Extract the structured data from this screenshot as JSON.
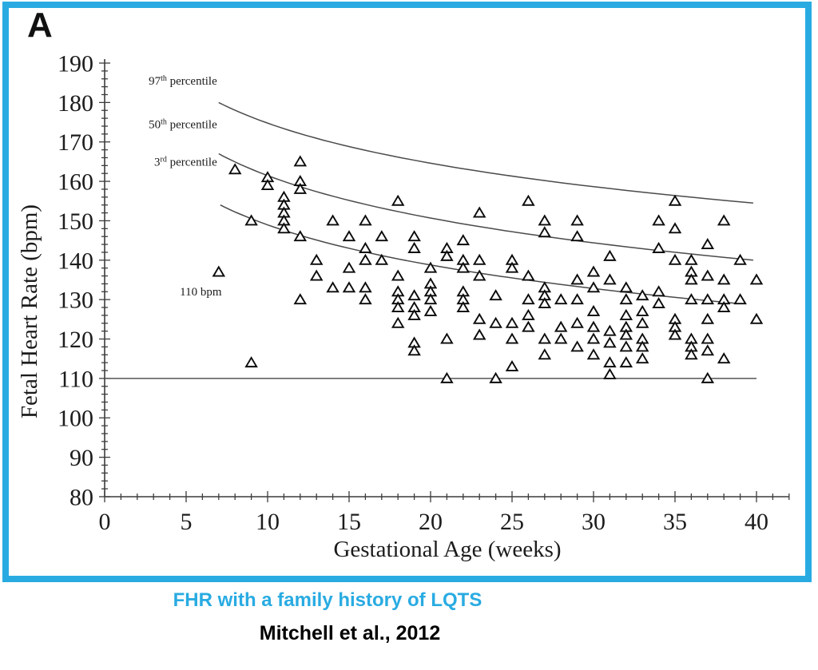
{
  "panel_label": "A",
  "frame": {
    "border_color": "#29abe2",
    "background": "#ffffff"
  },
  "captions": {
    "subtitle": {
      "text": "FHR with a family history of LQTS",
      "color": "#29abe2"
    },
    "citation": {
      "text": "Mitchell et al., 2012",
      "color": "#000000"
    }
  },
  "chart_data": {
    "type": "scatter",
    "title": "",
    "xlabel": "Gestational Age (weeks)",
    "ylabel": "Fetal Heart Rate (bpm)",
    "xlim": [
      0,
      42
    ],
    "ylim": [
      80,
      190
    ],
    "x_major_ticks": [
      0,
      5,
      10,
      15,
      20,
      25,
      30,
      35,
      40
    ],
    "x_minor_step": 1,
    "y_major_ticks": [
      80,
      90,
      100,
      110,
      120,
      130,
      140,
      150,
      160,
      170,
      180,
      190
    ],
    "y_minor_step": 2,
    "grid": false,
    "legend": "none",
    "marker": "open-triangle",
    "marker_color": "#0a0a0a",
    "axis_color": "#3c3c3c",
    "reference_line": {
      "y": 110,
      "x_start": 0,
      "x_end": 40,
      "label": "110 bpm",
      "label_week": 5.9,
      "label_bpm": 131
    },
    "percentile_curves": [
      {
        "label_base": "97",
        "label_sup": "th",
        "label_rest": " percentile",
        "start_week": 7,
        "start_bpm": 180,
        "end_week": 39.8,
        "end_bpm": 154.5,
        "label_week": 6.9,
        "label_bpm": 184.5
      },
      {
        "label_base": "50",
        "label_sup": "th",
        "label_rest": " percentile",
        "start_week": 7,
        "start_bpm": 167,
        "end_week": 39.8,
        "end_bpm": 140,
        "label_week": 6.9,
        "label_bpm": 173.5
      },
      {
        "label_base": "3",
        "label_sup": "rd",
        "label_rest": " percentile",
        "start_week": 7.1,
        "start_bpm": 154,
        "end_week": 38.9,
        "end_bpm": 129,
        "label_week": 6.9,
        "label_bpm": 164
      }
    ],
    "points": [
      [
        7,
        137
      ],
      [
        8,
        163
      ],
      [
        9,
        150
      ],
      [
        9,
        114
      ],
      [
        10,
        161
      ],
      [
        10,
        159
      ],
      [
        11,
        156
      ],
      [
        11,
        154
      ],
      [
        11,
        152
      ],
      [
        11,
        150
      ],
      [
        11,
        148
      ],
      [
        12,
        165
      ],
      [
        12,
        160
      ],
      [
        12,
        158
      ],
      [
        12,
        146
      ],
      [
        12,
        130
      ],
      [
        13,
        140
      ],
      [
        13,
        136
      ],
      [
        14,
        150
      ],
      [
        14,
        133
      ],
      [
        15,
        146
      ],
      [
        15,
        138
      ],
      [
        15,
        133
      ],
      [
        16,
        150
      ],
      [
        16,
        143
      ],
      [
        16,
        140
      ],
      [
        16,
        133
      ],
      [
        16,
        130
      ],
      [
        17,
        146
      ],
      [
        17,
        140
      ],
      [
        18,
        155
      ],
      [
        18,
        136
      ],
      [
        18,
        132
      ],
      [
        18,
        130
      ],
      [
        18,
        128
      ],
      [
        18,
        124
      ],
      [
        19,
        146
      ],
      [
        19,
        143
      ],
      [
        19,
        131
      ],
      [
        19,
        128
      ],
      [
        19,
        126
      ],
      [
        19,
        119
      ],
      [
        19,
        117
      ],
      [
        20,
        138
      ],
      [
        20,
        134
      ],
      [
        20,
        132
      ],
      [
        20,
        130
      ],
      [
        20,
        127
      ],
      [
        21,
        143
      ],
      [
        21,
        141
      ],
      [
        21,
        120
      ],
      [
        21,
        110
      ],
      [
        22,
        145
      ],
      [
        22,
        140
      ],
      [
        22,
        138
      ],
      [
        22,
        132
      ],
      [
        22,
        130
      ],
      [
        22,
        128
      ],
      [
        23,
        152
      ],
      [
        23,
        140
      ],
      [
        23,
        136
      ],
      [
        23,
        125
      ],
      [
        23,
        121
      ],
      [
        24,
        131
      ],
      [
        24,
        124
      ],
      [
        24,
        110
      ],
      [
        25,
        140
      ],
      [
        25,
        138
      ],
      [
        25,
        124
      ],
      [
        25,
        120
      ],
      [
        25,
        113
      ],
      [
        26,
        155
      ],
      [
        26,
        136
      ],
      [
        26,
        130
      ],
      [
        26,
        126
      ],
      [
        26,
        123
      ],
      [
        27,
        150
      ],
      [
        27,
        147
      ],
      [
        27,
        133
      ],
      [
        27,
        131
      ],
      [
        27,
        129
      ],
      [
        27,
        120
      ],
      [
        27,
        116
      ],
      [
        28,
        130
      ],
      [
        28,
        123
      ],
      [
        28,
        120
      ],
      [
        29,
        150
      ],
      [
        29,
        146
      ],
      [
        29,
        135
      ],
      [
        29,
        130
      ],
      [
        29,
        124
      ],
      [
        29,
        118
      ],
      [
        30,
        137
      ],
      [
        30,
        133
      ],
      [
        30,
        127
      ],
      [
        30,
        123
      ],
      [
        30,
        120
      ],
      [
        30,
        116
      ],
      [
        31,
        141
      ],
      [
        31,
        135
      ],
      [
        31,
        122
      ],
      [
        31,
        119
      ],
      [
        31,
        114
      ],
      [
        31,
        111
      ],
      [
        32,
        133
      ],
      [
        32,
        130
      ],
      [
        32,
        126
      ],
      [
        32,
        123
      ],
      [
        32,
        121
      ],
      [
        32,
        118
      ],
      [
        32,
        114
      ],
      [
        33,
        131
      ],
      [
        33,
        127
      ],
      [
        33,
        124
      ],
      [
        33,
        120
      ],
      [
        33,
        118
      ],
      [
        33,
        115
      ],
      [
        34,
        150
      ],
      [
        34,
        143
      ],
      [
        34,
        132
      ],
      [
        34,
        129
      ],
      [
        35,
        155
      ],
      [
        35,
        148
      ],
      [
        35,
        140
      ],
      [
        35,
        125
      ],
      [
        35,
        123
      ],
      [
        35,
        121
      ],
      [
        36,
        140
      ],
      [
        36,
        137
      ],
      [
        36,
        135
      ],
      [
        36,
        130
      ],
      [
        36,
        120
      ],
      [
        36,
        118
      ],
      [
        36,
        116
      ],
      [
        37,
        144
      ],
      [
        37,
        136
      ],
      [
        37,
        130
      ],
      [
        37,
        125
      ],
      [
        37,
        120
      ],
      [
        37,
        117
      ],
      [
        37,
        110
      ],
      [
        38,
        150
      ],
      [
        38,
        135
      ],
      [
        38,
        130
      ],
      [
        38,
        128
      ],
      [
        38,
        115
      ],
      [
        39,
        140
      ],
      [
        39,
        130
      ],
      [
        40,
        135
      ],
      [
        40,
        125
      ]
    ]
  }
}
